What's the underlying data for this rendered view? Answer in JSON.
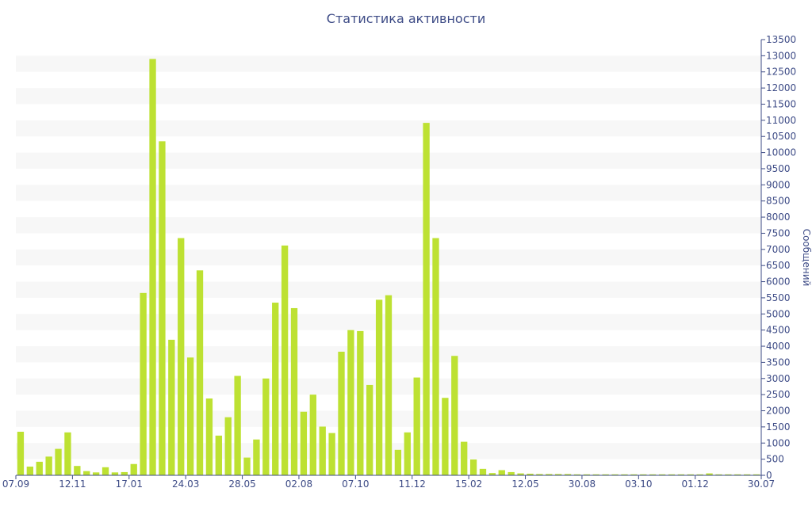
{
  "chart_data": {
    "type": "bar",
    "title": "Статистика активности",
    "ylabel": "Сообщений",
    "xlabel": "",
    "ylim": [
      0,
      13500
    ],
    "y_ticks": [
      0,
      500,
      1000,
      1500,
      2000,
      2500,
      3000,
      3500,
      4000,
      4500,
      5000,
      5500,
      6000,
      6500,
      7000,
      7500,
      8000,
      8500,
      9000,
      9500,
      10000,
      10500,
      11000,
      11500,
      12000,
      12500,
      13000,
      13500
    ],
    "y_axis_side": "right",
    "grid": "alternating horizontal bands",
    "bar_color": "#bde132",
    "band_color": "#f7f7f7",
    "text_color": "#3d4b86",
    "x_tick_labels": [
      {
        "index": 0,
        "label": "07.09"
      },
      {
        "index": 6,
        "label": "12.11"
      },
      {
        "index": 12,
        "label": "17.01"
      },
      {
        "index": 18,
        "label": "24.03"
      },
      {
        "index": 24,
        "label": "28.05"
      },
      {
        "index": 30,
        "label": "02.08"
      },
      {
        "index": 36,
        "label": "07.10"
      },
      {
        "index": 42,
        "label": "11.12"
      },
      {
        "index": 48,
        "label": "15.02"
      },
      {
        "index": 54,
        "label": "12.05"
      },
      {
        "index": 60,
        "label": "30.08"
      },
      {
        "index": 66,
        "label": "03.10"
      },
      {
        "index": 72,
        "label": "01.12"
      },
      {
        "index": 78,
        "label": "30.07"
      }
    ],
    "values": [
      1350,
      270,
      420,
      580,
      820,
      1330,
      290,
      130,
      90,
      250,
      90,
      100,
      350,
      5650,
      12900,
      10350,
      4200,
      7350,
      3650,
      6350,
      2380,
      1230,
      1800,
      3080,
      550,
      1110,
      3000,
      5350,
      7120,
      5180,
      1970,
      2500,
      1510,
      1310,
      3830,
      4500,
      4470,
      2800,
      5440,
      5580,
      790,
      1330,
      3030,
      10920,
      7350,
      2400,
      3700,
      1040,
      490,
      200,
      70,
      160,
      100,
      60,
      50,
      40,
      40,
      40,
      40,
      30,
      30,
      30,
      30,
      30,
      30,
      30,
      30,
      30,
      30,
      30,
      30,
      30,
      30,
      60,
      30,
      30,
      30,
      30,
      30
    ]
  }
}
